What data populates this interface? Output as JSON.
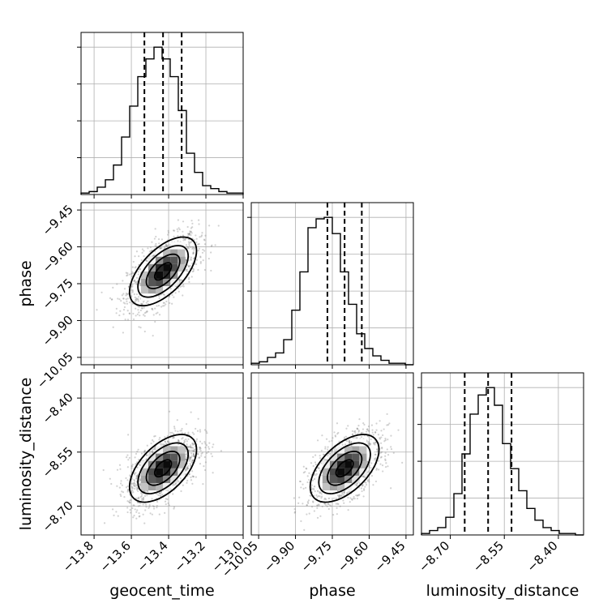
{
  "chart_data": {
    "type": "corner",
    "parameters": [
      "geocent_time",
      "phase",
      "luminosity_distance"
    ],
    "axis_labels": {
      "geocent_time": "geocent_time",
      "phase": "phase",
      "luminosity_distance": "luminosity_distance"
    },
    "ranges": {
      "geocent_time": [
        -13.87,
        -13.0
      ],
      "phase": [
        -10.08,
        -9.42
      ],
      "luminosity_distance": [
        -8.78,
        -8.33
      ]
    },
    "ticks": {
      "geocent_time": {
        "values": [
          -13.8,
          -13.6,
          -13.4,
          -13.2,
          -13.0
        ],
        "labels": [
          "−13.8",
          "−13.6",
          "−13.4",
          "−13.2",
          "−13.0"
        ]
      },
      "phase": {
        "values": [
          -10.05,
          -9.9,
          -9.75,
          -9.6,
          -9.45
        ],
        "labels": [
          "−10.05",
          "−9.90",
          "−9.75",
          "−9.60",
          "−9.45"
        ]
      },
      "luminosity_distance": {
        "values": [
          -8.7,
          -8.55,
          -8.4
        ],
        "labels": [
          "−8.70",
          "−8.55",
          "−8.40"
        ]
      }
    },
    "means": {
      "geocent_time": -13.43,
      "phase": -9.7,
      "luminosity_distance": -8.595
    },
    "sigmas": {
      "geocent_time": 0.09,
      "phase": 0.07,
      "luminosity_distance": 0.047
    },
    "quantiles": {
      "geocent_time": [
        -13.53,
        -13.43,
        -13.33
      ],
      "phase": [
        -9.77,
        -9.7,
        -9.63
      ],
      "luminosity_distance": [
        -8.66,
        -8.595,
        -8.53
      ]
    },
    "histograms": {
      "geocent_time": {
        "bins": 20,
        "counts": [
          1,
          2,
          5,
          10,
          20,
          39,
          60,
          80,
          92,
          100,
          92,
          80,
          57,
          28,
          15,
          6,
          4,
          2,
          1,
          1
        ]
      },
      "phase": {
        "bins": 20,
        "counts": [
          1,
          2,
          5,
          8,
          17,
          37,
          63,
          93,
          99,
          100,
          89,
          63,
          41,
          21,
          11,
          6,
          3,
          1,
          1,
          0
        ]
      },
      "luminosity_distance": {
        "bins": 20,
        "counts": [
          1,
          3,
          5,
          12,
          28,
          55,
          82,
          95,
          100,
          88,
          62,
          45,
          30,
          18,
          10,
          5,
          3,
          1,
          1,
          0
        ]
      }
    },
    "correlations": {
      "phase|geocent_time": 0.6,
      "luminosity_distance|geocent_time": 0.55,
      "luminosity_distance|phase": 0.55
    },
    "contour_levels_sigma": [
      0.5,
      1.0,
      1.5,
      2.0
    ],
    "grid": true
  }
}
